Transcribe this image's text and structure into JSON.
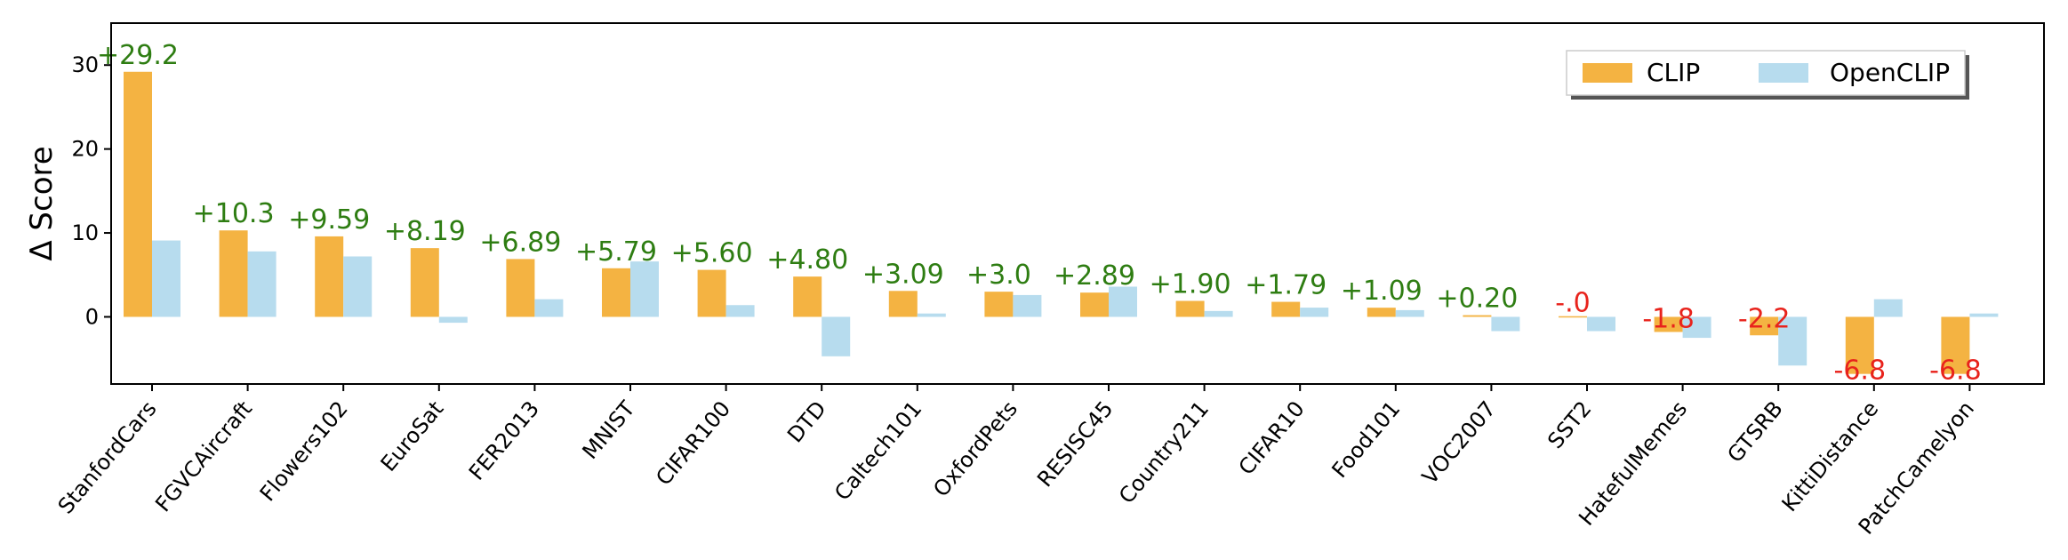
{
  "chart_data": {
    "type": "bar",
    "ylabel": "Δ Score",
    "xlabel": "",
    "ylim": [
      -8,
      35
    ],
    "yticks": [
      0,
      10,
      20,
      30
    ],
    "grid": false,
    "legend_position": "top-right",
    "categories": [
      "StanfordCars",
      "FGVCAircraft",
      "Flowers102",
      "EuroSat",
      "FER2013",
      "MNIST",
      "CIFAR100",
      "DTD",
      "Caltech101",
      "OxfordPets",
      "RESISC45",
      "Country211",
      "CIFAR10",
      "Food101",
      "VOC2007",
      "SST2",
      "HatefulMemes",
      "GTSRB",
      "KittiDistance",
      "PatchCamelyon"
    ],
    "series": [
      {
        "name": "CLIP",
        "color": "#f4b342",
        "values": [
          29.2,
          10.3,
          9.59,
          8.19,
          6.89,
          5.79,
          5.6,
          4.8,
          3.09,
          3.0,
          2.89,
          1.9,
          1.79,
          1.09,
          0.2,
          -0.0,
          -1.8,
          -2.2,
          -6.8,
          -6.8
        ]
      },
      {
        "name": "OpenCLIP",
        "color": "#b7dcee",
        "values": [
          9.1,
          7.8,
          7.2,
          -0.7,
          2.1,
          6.6,
          1.4,
          -4.7,
          0.4,
          2.6,
          3.6,
          0.7,
          1.1,
          0.8,
          -1.7,
          -1.7,
          -2.5,
          -5.8,
          2.1,
          0.4
        ]
      }
    ],
    "annotations": [
      "+29.2",
      "+10.3",
      "+9.59",
      "+8.19",
      "+6.89",
      "+5.79",
      "+5.60",
      "+4.80",
      "+3.09",
      "+3.0",
      "+2.89",
      "+1.90",
      "+1.79",
      "+1.09",
      "+0.20",
      "-.0",
      "-1.8",
      "-2.2",
      "-6.8",
      "-6.8"
    ],
    "annotation_colors": {
      "positive": "#2e7d12",
      "negative": "#e8231c"
    }
  }
}
